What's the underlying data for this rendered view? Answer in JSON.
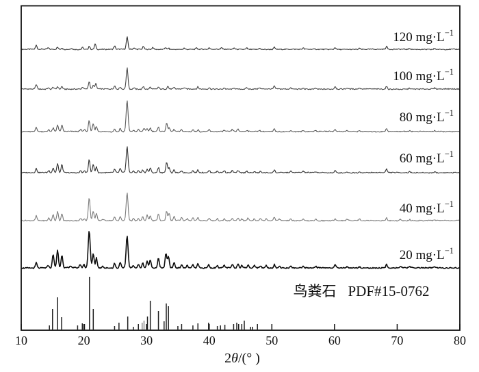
{
  "figure_type": "XRD patterns of precipitates at different concentrations, with struvite reference pattern",
  "chart_data": {
    "type": "line",
    "title": "",
    "xlabel": "2θ/(°)",
    "xlabel_parts": {
      "pre": "2",
      "theta": "θ",
      "post": "/(° )"
    },
    "ylabel": "",
    "x_range": [
      10,
      80
    ],
    "x_ticks": [
      10,
      20,
      30,
      40,
      50,
      60,
      70,
      80
    ],
    "grid": "off",
    "legend_position": "labels at right side of each curve",
    "series": [
      {
        "label": "120 mg·L−1",
        "label_value": "120",
        "label_unit": "mg·L",
        "label_exp": "−1",
        "color": "#2e2e2e",
        "peaks": [
          [
            12.4,
            6
          ],
          [
            14.3,
            2
          ],
          [
            15.8,
            3
          ],
          [
            16.5,
            2
          ],
          [
            18.0,
            2
          ],
          [
            19.8,
            3
          ],
          [
            20.85,
            5
          ],
          [
            21.8,
            8
          ],
          [
            24.9,
            5
          ],
          [
            26.9,
            18
          ],
          [
            28.0,
            2
          ],
          [
            29.5,
            4
          ],
          [
            31.0,
            3
          ],
          [
            33.0,
            3
          ],
          [
            33.5,
            2
          ],
          [
            36.0,
            2
          ],
          [
            38.0,
            2
          ],
          [
            40.0,
            2
          ],
          [
            42.0,
            2
          ],
          [
            44.0,
            2
          ],
          [
            46.0,
            2
          ],
          [
            48.0,
            2
          ],
          [
            50.4,
            3
          ],
          [
            55.0,
            1.5
          ],
          [
            60.1,
            3
          ],
          [
            64.0,
            1.5
          ],
          [
            68.3,
            4
          ],
          [
            72.0,
            1.5
          ],
          [
            76.0,
            1.5
          ]
        ]
      },
      {
        "label": "100 mg·L−1",
        "label_value": "100",
        "label_unit": "mg·L",
        "label_exp": "−1",
        "color": "#474747",
        "peaks": [
          [
            12.4,
            7
          ],
          [
            14.3,
            2
          ],
          [
            15.1,
            3
          ],
          [
            15.8,
            4
          ],
          [
            16.5,
            4
          ],
          [
            19.8,
            3
          ],
          [
            20.85,
            11
          ],
          [
            21.5,
            5
          ],
          [
            21.9,
            8
          ],
          [
            24.9,
            5
          ],
          [
            25.8,
            3
          ],
          [
            26.9,
            31
          ],
          [
            28.0,
            2
          ],
          [
            29.5,
            4
          ],
          [
            30.6,
            3
          ],
          [
            31.9,
            3
          ],
          [
            33.4,
            4
          ],
          [
            34.4,
            2
          ],
          [
            36.0,
            2
          ],
          [
            38.2,
            3
          ],
          [
            40.0,
            2
          ],
          [
            42.4,
            2
          ],
          [
            44.0,
            2
          ],
          [
            46.0,
            2
          ],
          [
            48.0,
            2
          ],
          [
            50.4,
            4
          ],
          [
            53.0,
            1.5
          ],
          [
            55.0,
            1.5
          ],
          [
            57.0,
            1.5
          ],
          [
            60.1,
            4
          ],
          [
            62.0,
            1.5
          ],
          [
            64.0,
            1.5
          ],
          [
            68.3,
            4
          ],
          [
            72.0,
            1.5
          ],
          [
            76.0,
            1.5
          ]
        ]
      },
      {
        "label": "80 mg·L−1",
        "label_value": "80",
        "label_unit": "mg·L",
        "label_exp": "−1",
        "color": "#5b5b5b",
        "peaks": [
          [
            12.4,
            7
          ],
          [
            14.4,
            3
          ],
          [
            15.1,
            5
          ],
          [
            15.8,
            10
          ],
          [
            16.5,
            9
          ],
          [
            19.5,
            3
          ],
          [
            20.1,
            3
          ],
          [
            20.85,
            16
          ],
          [
            21.5,
            11
          ],
          [
            22.0,
            8
          ],
          [
            24.9,
            4
          ],
          [
            25.8,
            5
          ],
          [
            26.9,
            45
          ],
          [
            27.9,
            2
          ],
          [
            28.7,
            3
          ],
          [
            29.6,
            5
          ],
          [
            30.1,
            4
          ],
          [
            30.6,
            5
          ],
          [
            31.9,
            6
          ],
          [
            33.2,
            12
          ],
          [
            33.6,
            6
          ],
          [
            34.4,
            3
          ],
          [
            35.6,
            3
          ],
          [
            37.4,
            3
          ],
          [
            38.2,
            3
          ],
          [
            40.0,
            3
          ],
          [
            42.4,
            2
          ],
          [
            43.7,
            3
          ],
          [
            44.6,
            3
          ],
          [
            46.0,
            2
          ],
          [
            48.0,
            2
          ],
          [
            50.4,
            4
          ],
          [
            53.0,
            2
          ],
          [
            55.0,
            1.5
          ],
          [
            57.0,
            1.5
          ],
          [
            60.1,
            3
          ],
          [
            62.0,
            1.5
          ],
          [
            64.0,
            1.5
          ],
          [
            68.3,
            5
          ],
          [
            72.0,
            1.5
          ],
          [
            76.0,
            1.5
          ]
        ]
      },
      {
        "label": "60 mg·L−1",
        "label_value": "60",
        "label_unit": "mg·L",
        "label_exp": "−1",
        "color": "#2f2f2f",
        "peaks": [
          [
            12.4,
            6
          ],
          [
            14.4,
            3
          ],
          [
            15.1,
            7
          ],
          [
            15.8,
            13
          ],
          [
            16.5,
            12
          ],
          [
            19.5,
            3
          ],
          [
            20.1,
            3
          ],
          [
            20.85,
            20
          ],
          [
            21.5,
            12
          ],
          [
            22.0,
            9
          ],
          [
            24.9,
            5
          ],
          [
            25.8,
            6
          ],
          [
            26.9,
            38
          ],
          [
            27.9,
            2
          ],
          [
            28.7,
            3
          ],
          [
            29.4,
            4
          ],
          [
            30.1,
            5
          ],
          [
            30.6,
            7
          ],
          [
            31.9,
            8
          ],
          [
            33.2,
            16
          ],
          [
            33.6,
            8
          ],
          [
            34.4,
            4
          ],
          [
            35.6,
            3
          ],
          [
            37.4,
            3
          ],
          [
            38.2,
            4
          ],
          [
            40.0,
            3
          ],
          [
            41.3,
            2
          ],
          [
            42.4,
            3
          ],
          [
            43.7,
            3
          ],
          [
            44.6,
            3
          ],
          [
            46.0,
            3
          ],
          [
            47.2,
            2
          ],
          [
            48.2,
            2
          ],
          [
            50.4,
            4
          ],
          [
            53.0,
            2
          ],
          [
            55.0,
            2
          ],
          [
            57.0,
            1.5
          ],
          [
            60.1,
            3
          ],
          [
            62.0,
            1.5
          ],
          [
            64.0,
            1.5
          ],
          [
            68.3,
            5
          ],
          [
            72.0,
            1.5
          ],
          [
            76.0,
            1.5
          ]
        ]
      },
      {
        "label": "40 mg·L−1",
        "label_value": "40",
        "label_unit": "mg·L",
        "label_exp": "−1",
        "color": "#7b7b7b",
        "peaks": [
          [
            12.4,
            7
          ],
          [
            14.4,
            4
          ],
          [
            15.1,
            9
          ],
          [
            15.8,
            14
          ],
          [
            16.5,
            10
          ],
          [
            19.5,
            3
          ],
          [
            20.1,
            3
          ],
          [
            20.85,
            33
          ],
          [
            21.5,
            14
          ],
          [
            22.0,
            10
          ],
          [
            23.0,
            2
          ],
          [
            24.9,
            5
          ],
          [
            25.8,
            6
          ],
          [
            26.9,
            41
          ],
          [
            27.9,
            3
          ],
          [
            28.7,
            3
          ],
          [
            29.4,
            6
          ],
          [
            30.1,
            8
          ],
          [
            30.6,
            8
          ],
          [
            31.9,
            10
          ],
          [
            33.2,
            14
          ],
          [
            33.6,
            11
          ],
          [
            34.4,
            6
          ],
          [
            35.6,
            4
          ],
          [
            36.5,
            3
          ],
          [
            37.4,
            4
          ],
          [
            38.2,
            4
          ],
          [
            40.0,
            4
          ],
          [
            41.3,
            3
          ],
          [
            42.4,
            3
          ],
          [
            43.7,
            4
          ],
          [
            44.6,
            4
          ],
          [
            45.2,
            3
          ],
          [
            46.2,
            4
          ],
          [
            47.2,
            3
          ],
          [
            48.2,
            3
          ],
          [
            49.1,
            3
          ],
          [
            50.4,
            5
          ],
          [
            51.2,
            2
          ],
          [
            53.0,
            2
          ],
          [
            55.0,
            2
          ],
          [
            57.0,
            2
          ],
          [
            60.1,
            3
          ],
          [
            62.0,
            2
          ],
          [
            64.0,
            2
          ],
          [
            68.3,
            4
          ],
          [
            70.5,
            2
          ],
          [
            72.0,
            1.5
          ],
          [
            76.0,
            1.5
          ]
        ]
      },
      {
        "label": "20 mg·L−1",
        "label_value": "20",
        "label_unit": "mg·L",
        "label_exp": "−1",
        "color": "#0d0d0d",
        "peaks": [
          [
            12.4,
            8
          ],
          [
            14.3,
            4
          ],
          [
            15.1,
            20
          ],
          [
            15.8,
            26
          ],
          [
            16.5,
            19
          ],
          [
            17.9,
            3
          ],
          [
            19.4,
            5
          ],
          [
            20.0,
            5
          ],
          [
            20.85,
            54
          ],
          [
            21.5,
            21
          ],
          [
            22.0,
            15
          ],
          [
            23.0,
            3
          ],
          [
            24.9,
            7
          ],
          [
            25.8,
            9
          ],
          [
            26.9,
            47
          ],
          [
            27.9,
            4
          ],
          [
            28.7,
            5
          ],
          [
            29.4,
            7
          ],
          [
            30.1,
            10
          ],
          [
            30.6,
            12
          ],
          [
            31.9,
            14
          ],
          [
            33.1,
            21
          ],
          [
            33.5,
            17
          ],
          [
            34.4,
            8
          ],
          [
            35.6,
            5
          ],
          [
            36.5,
            4
          ],
          [
            37.4,
            5
          ],
          [
            38.2,
            6
          ],
          [
            39.9,
            5
          ],
          [
            41.3,
            4
          ],
          [
            42.4,
            4
          ],
          [
            43.7,
            5
          ],
          [
            44.6,
            6
          ],
          [
            45.2,
            4
          ],
          [
            46.2,
            4
          ],
          [
            47.2,
            4
          ],
          [
            48.2,
            3
          ],
          [
            49.1,
            4
          ],
          [
            50.4,
            5
          ],
          [
            51.2,
            3
          ],
          [
            53.0,
            3
          ],
          [
            55.0,
            2
          ],
          [
            57.0,
            2
          ],
          [
            60.1,
            4
          ],
          [
            62.0,
            2
          ],
          [
            64.0,
            2
          ],
          [
            68.3,
            5
          ],
          [
            70.5,
            2
          ],
          [
            72.0,
            2
          ],
          [
            76.0,
            2
          ]
        ]
      }
    ],
    "reference": {
      "mineral": "鸟粪石",
      "pdf": "PDF#15-0762",
      "color": "#1f1f1f",
      "sticks": [
        [
          14.5,
          6
        ],
        [
          15.0,
          30
        ],
        [
          15.8,
          47
        ],
        [
          16.45,
          18
        ],
        [
          19.0,
          6
        ],
        [
          19.75,
          9
        ],
        [
          20.1,
          8
        ],
        [
          20.9,
          77
        ],
        [
          21.5,
          30
        ],
        [
          24.9,
          5
        ],
        [
          25.6,
          10
        ],
        [
          27.0,
          19
        ],
        [
          27.9,
          4
        ],
        [
          28.7,
          8
        ],
        [
          29.3,
          10,
          "gray"
        ],
        [
          29.6,
          13,
          "gray"
        ],
        [
          30.15,
          19
        ],
        [
          30.6,
          42
        ],
        [
          31.9,
          27
        ],
        [
          32.8,
          12
        ],
        [
          33.15,
          38
        ],
        [
          33.5,
          34
        ],
        [
          35.0,
          5
        ],
        [
          35.6,
          8
        ],
        [
          37.4,
          6
        ],
        [
          38.2,
          9
        ],
        [
          39.9,
          10
        ],
        [
          41.3,
          5
        ],
        [
          41.8,
          6
        ],
        [
          42.5,
          7
        ],
        [
          43.9,
          8
        ],
        [
          44.4,
          10
        ],
        [
          44.7,
          8
        ],
        [
          45.2,
          8
        ],
        [
          45.6,
          13
        ],
        [
          46.6,
          4
        ],
        [
          46.9,
          4
        ],
        [
          47.7,
          8
        ]
      ]
    }
  }
}
